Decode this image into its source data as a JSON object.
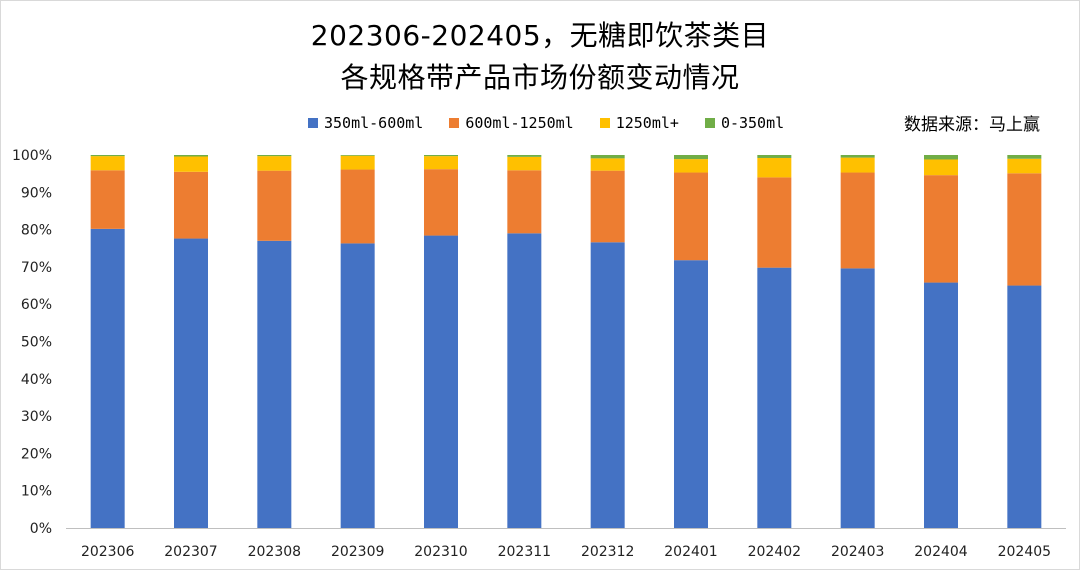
{
  "title_lines": [
    "202306-202405，无糖即饮茶类目",
    "各规格带产品市场份额变动情况"
  ],
  "source_note": "数据来源：马上赢",
  "colors": {
    "series_1": "#4472c4",
    "series_2": "#ed7d31",
    "series_3": "#ffc000",
    "series_4": "#70ad47",
    "axis": "#bfbfbf"
  },
  "chart_data": {
    "type": "bar",
    "stacked": true,
    "percent_stacked": true,
    "title": "202306-202405，无糖即饮茶类目 各规格带产品市场份额变动情况",
    "xlabel": "",
    "ylabel": "",
    "ylim": [
      0,
      100
    ],
    "y_ticks": [
      "0%",
      "10%",
      "20%",
      "30%",
      "40%",
      "50%",
      "60%",
      "70%",
      "80%",
      "90%",
      "100%"
    ],
    "legend_position": "top",
    "grid": false,
    "categories": [
      "202306",
      "202307",
      "202308",
      "202309",
      "202310",
      "202311",
      "202312",
      "202401",
      "202402",
      "202403",
      "202404",
      "202405"
    ],
    "series": [
      {
        "name": "350ml-600ml",
        "color": "#4472c4",
        "values": [
          80.2,
          77.6,
          77.0,
          76.3,
          78.4,
          79.0,
          76.6,
          71.8,
          69.8,
          69.6,
          65.8,
          65.0
        ]
      },
      {
        "name": "600ml-1250ml",
        "color": "#ed7d31",
        "values": [
          15.7,
          17.9,
          18.8,
          19.8,
          17.8,
          16.9,
          19.2,
          23.5,
          24.2,
          25.7,
          28.8,
          30.1
        ]
      },
      {
        "name": "1250ml+",
        "color": "#ffc000",
        "values": [
          3.8,
          4.1,
          3.9,
          3.7,
          3.5,
          3.6,
          3.3,
          3.6,
          5.2,
          4.0,
          4.2,
          3.9
        ]
      },
      {
        "name": "0-350ml",
        "color": "#70ad47",
        "values": [
          0.3,
          0.4,
          0.3,
          0.2,
          0.3,
          0.5,
          0.9,
          1.1,
          0.8,
          0.7,
          1.2,
          1.0
        ]
      }
    ]
  }
}
